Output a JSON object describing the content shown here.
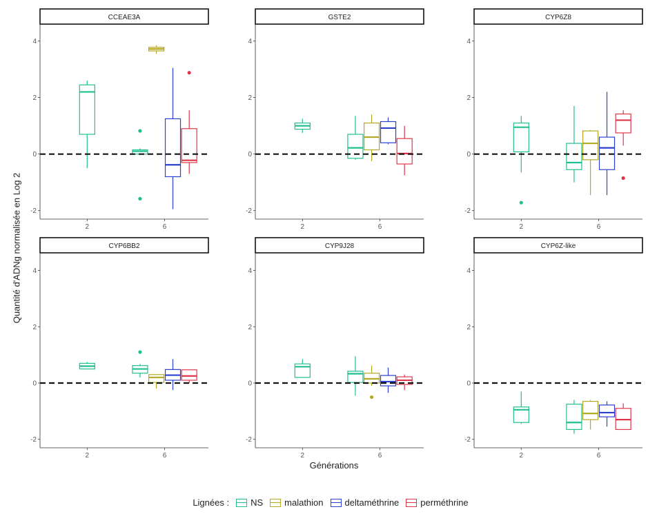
{
  "chart_data": {
    "type": "boxplot",
    "ylabel": "Quantité d'ADNg normalisée en Log 2",
    "xlabel": "Générations",
    "legend": {
      "title": "Lignées :",
      "position": "bottom",
      "entries": [
        "NS",
        "malathion",
        "deltaméthrine",
        "perméthrine"
      ],
      "colors": {
        "NS": "#1fbf8f",
        "malathion": "#b3a81f",
        "deltaméthrine": "#2b3fd1",
        "perméthrine": "#e0344a"
      }
    },
    "x_ticks": [
      "2",
      "6"
    ],
    "ylim": [
      -2.3,
      4.6
    ],
    "y_ticks": [
      -2,
      0,
      2,
      4
    ],
    "reference_line": 0,
    "panels": [
      {
        "title": "CCEAE3A",
        "boxes": [
          {
            "generation": "2",
            "line": "NS",
            "min": -0.5,
            "q1": 0.7,
            "median": 2.2,
            "q3": 2.45,
            "max": 2.6,
            "outliers": []
          },
          {
            "generation": "6",
            "line": "NS",
            "min": 0.0,
            "q1": 0.0,
            "median": 0.1,
            "q3": 0.15,
            "max": 0.2,
            "outliers": [
              0.82,
              -1.58
            ]
          },
          {
            "generation": "6",
            "line": "malathion",
            "min": 3.55,
            "q1": 3.65,
            "median": 3.72,
            "q3": 3.78,
            "max": 3.85,
            "outliers": []
          },
          {
            "generation": "6",
            "line": "deltaméthrine",
            "min": -1.95,
            "q1": -0.8,
            "median": -0.38,
            "q3": 1.25,
            "max": 3.05,
            "outliers": []
          },
          {
            "generation": "6",
            "line": "perméthrine",
            "min": -0.7,
            "q1": -0.3,
            "median": -0.22,
            "q3": 0.9,
            "max": 1.55,
            "outliers": [
              2.88
            ]
          }
        ]
      },
      {
        "title": "GSTE2",
        "boxes": [
          {
            "generation": "2",
            "line": "NS",
            "min": 0.75,
            "q1": 0.88,
            "median": 1.0,
            "q3": 1.1,
            "max": 1.25,
            "outliers": []
          },
          {
            "generation": "6",
            "line": "NS",
            "min": -0.2,
            "q1": -0.15,
            "median": 0.22,
            "q3": 0.7,
            "max": 1.35,
            "outliers": []
          },
          {
            "generation": "6",
            "line": "malathion",
            "min": -0.25,
            "q1": 0.15,
            "median": 0.6,
            "q3": 1.1,
            "max": 1.4,
            "outliers": []
          },
          {
            "generation": "6",
            "line": "deltaméthrine",
            "min": 0.35,
            "q1": 0.4,
            "median": 0.92,
            "q3": 1.15,
            "max": 1.3,
            "outliers": []
          },
          {
            "generation": "6",
            "line": "perméthrine",
            "min": -0.75,
            "q1": -0.35,
            "median": 0.02,
            "q3": 0.55,
            "max": 1.0,
            "outliers": []
          }
        ]
      },
      {
        "title": "CYP6Z8",
        "boxes": [
          {
            "generation": "2",
            "line": "NS",
            "min": -0.65,
            "q1": 0.08,
            "median": 0.95,
            "q3": 1.1,
            "max": 1.35,
            "outliers": [
              -1.72
            ]
          },
          {
            "generation": "6",
            "line": "NS",
            "min": -1.0,
            "q1": -0.55,
            "median": -0.3,
            "q3": 0.38,
            "max": 1.7,
            "outliers": []
          },
          {
            "generation": "6",
            "line": "malathion",
            "min": -1.45,
            "q1": -0.2,
            "median": 0.38,
            "q3": 0.82,
            "max": 0.85,
            "outliers": []
          },
          {
            "generation": "6",
            "line": "deltaméthrine",
            "min": -1.45,
            "q1": -0.55,
            "median": 0.22,
            "q3": 0.6,
            "max": 2.2,
            "outliers": []
          },
          {
            "generation": "6",
            "line": "perméthrine",
            "min": 0.3,
            "q1": 0.75,
            "median": 1.2,
            "q3": 1.42,
            "max": 1.55,
            "outliers": [
              -0.85
            ]
          }
        ]
      },
      {
        "title": "CYP6BB2",
        "boxes": [
          {
            "generation": "2",
            "line": "NS",
            "min": 0.5,
            "q1": 0.5,
            "median": 0.6,
            "q3": 0.7,
            "max": 0.75,
            "outliers": []
          },
          {
            "generation": "6",
            "line": "NS",
            "min": 0.2,
            "q1": 0.35,
            "median": 0.5,
            "q3": 0.62,
            "max": 0.68,
            "outliers": [
              1.1
            ]
          },
          {
            "generation": "6",
            "line": "malathion",
            "min": -0.2,
            "q1": 0.02,
            "median": 0.2,
            "q3": 0.3,
            "max": 0.3,
            "outliers": []
          },
          {
            "generation": "6",
            "line": "deltaméthrine",
            "min": -0.25,
            "q1": 0.1,
            "median": 0.28,
            "q3": 0.48,
            "max": 0.85,
            "outliers": []
          },
          {
            "generation": "6",
            "line": "perméthrine",
            "min": 0.0,
            "q1": 0.1,
            "median": 0.25,
            "q3": 0.47,
            "max": 0.47,
            "outliers": []
          }
        ]
      },
      {
        "title": "CYP9J28",
        "boxes": [
          {
            "generation": "2",
            "line": "NS",
            "min": 0.2,
            "q1": 0.2,
            "median": 0.58,
            "q3": 0.68,
            "max": 0.85,
            "outliers": []
          },
          {
            "generation": "6",
            "line": "NS",
            "min": -0.45,
            "q1": 0.02,
            "median": 0.33,
            "q3": 0.42,
            "max": 0.95,
            "outliers": []
          },
          {
            "generation": "6",
            "line": "malathion",
            "min": -0.1,
            "q1": 0.0,
            "median": 0.15,
            "q3": 0.35,
            "max": 0.62,
            "outliers": [
              -0.5
            ]
          },
          {
            "generation": "6",
            "line": "deltaméthrine",
            "min": -0.35,
            "q1": -0.1,
            "median": 0.05,
            "q3": 0.27,
            "max": 0.55,
            "outliers": []
          },
          {
            "generation": "6",
            "line": "perméthrine",
            "min": -0.25,
            "q1": -0.05,
            "median": 0.1,
            "q3": 0.22,
            "max": 0.3,
            "outliers": []
          }
        ]
      },
      {
        "title": "CYP6Z-like",
        "boxes": [
          {
            "generation": "2",
            "line": "NS",
            "min": -1.45,
            "q1": -1.4,
            "median": -0.95,
            "q3": -0.85,
            "max": -0.3,
            "outliers": []
          },
          {
            "generation": "6",
            "line": "NS",
            "min": -1.8,
            "q1": -1.65,
            "median": -1.4,
            "q3": -0.75,
            "max": -0.6,
            "outliers": []
          },
          {
            "generation": "6",
            "line": "malathion",
            "min": -1.65,
            "q1": -1.3,
            "median": -1.08,
            "q3": -0.65,
            "max": -0.6,
            "outliers": []
          },
          {
            "generation": "6",
            "line": "deltaméthrine",
            "min": -1.55,
            "q1": -1.2,
            "median": -1.05,
            "q3": -0.78,
            "max": -0.65,
            "outliers": []
          },
          {
            "generation": "6",
            "line": "perméthrine",
            "min": -1.65,
            "q1": -1.65,
            "median": -1.3,
            "q3": -0.9,
            "max": -0.72,
            "outliers": []
          }
        ]
      }
    ]
  }
}
